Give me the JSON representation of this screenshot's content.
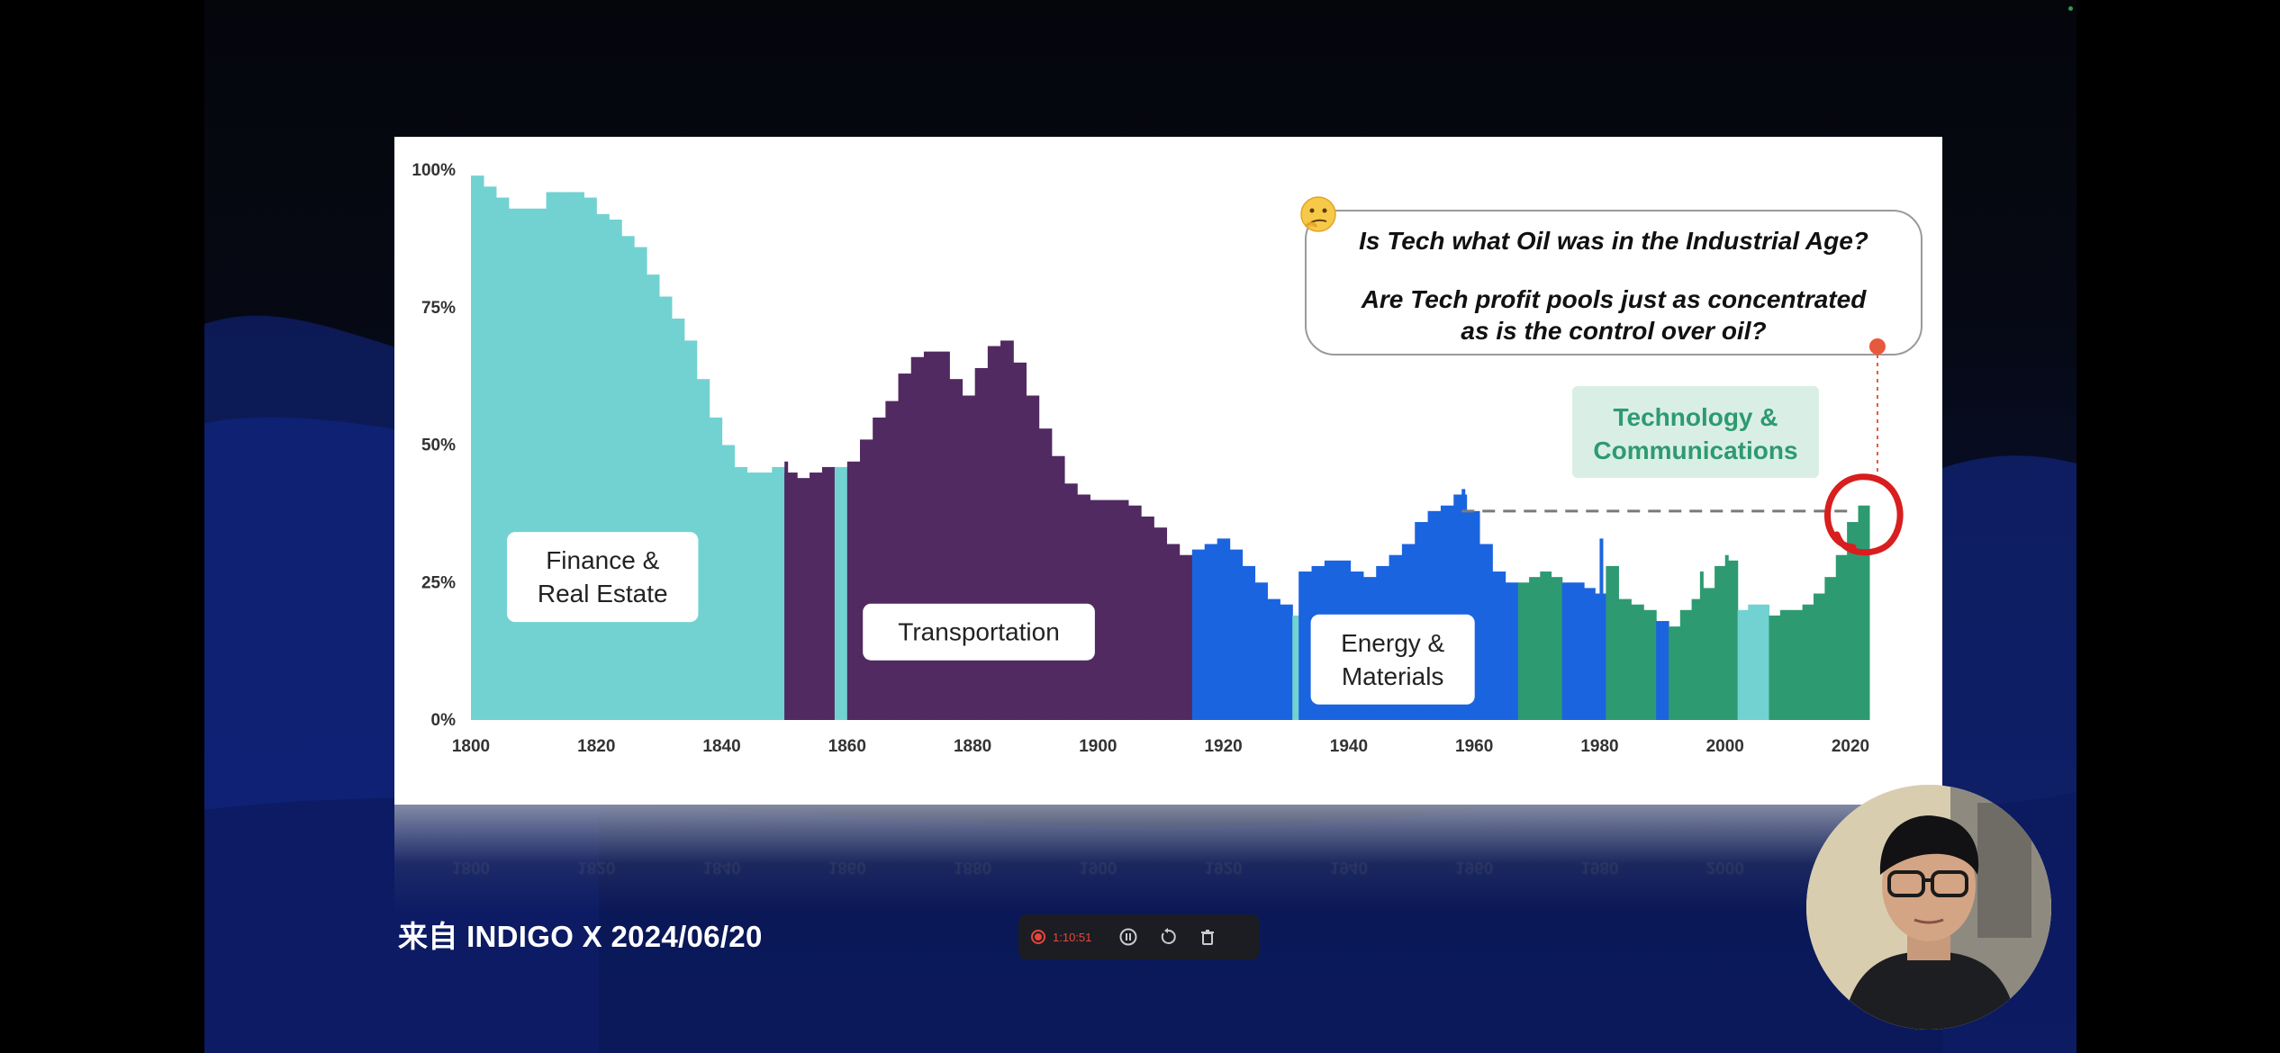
{
  "slide": {
    "chart_data": {
      "type": "bar",
      "x_start": 1800,
      "x_step": 2,
      "ylim": [
        0,
        100
      ],
      "y_ticks": [
        "0%",
        "25%",
        "50%",
        "75%",
        "100%"
      ],
      "x_ticks": [
        "1800",
        "1820",
        "1840",
        "1860",
        "1880",
        "1900",
        "1920",
        "1940",
        "1960",
        "1980",
        "2000",
        "2020"
      ],
      "sectors": [
        {
          "name": "Finance & Real Estate",
          "color": "#72d2d1"
        },
        {
          "name": "Transportation",
          "color": "#512a61"
        },
        {
          "name": "Energy & Materials",
          "color": "#1b64e0"
        },
        {
          "name": "Technology & Communications",
          "color": "#2e9a72"
        }
      ],
      "segments": [
        {
          "sector": 0,
          "start": 1800,
          "end": 1850,
          "values": [
            99,
            97,
            95,
            93,
            93,
            93,
            96,
            96,
            96,
            95,
            92,
            91,
            88,
            86,
            81,
            77,
            73,
            69,
            62,
            55,
            50,
            46,
            45,
            45,
            46
          ]
        },
        {
          "sector": 1,
          "start": 1850,
          "end": 1858,
          "values": [
            45,
            44,
            45,
            46
          ]
        },
        {
          "sector": 0,
          "start": 1858,
          "end": 1860,
          "values": [
            46
          ]
        },
        {
          "sector": 1,
          "start": 1860,
          "end": 1915,
          "values": [
            47,
            51,
            55,
            58,
            63,
            66,
            67,
            67,
            62,
            59,
            64,
            68,
            69,
            65,
            59,
            53,
            48,
            43,
            41,
            40,
            40,
            40,
            39,
            37,
            35,
            32,
            30
          ]
        },
        {
          "sector": 2,
          "start": 1915,
          "end": 1931,
          "values": [
            31,
            32,
            33,
            31,
            28,
            25,
            22,
            21
          ]
        },
        {
          "sector": 0,
          "start": 1931,
          "end": 1932,
          "values": [
            19
          ]
        },
        {
          "sector": 2,
          "start": 1932,
          "end": 1967,
          "values": [
            27,
            28,
            29,
            29,
            27,
            26,
            28,
            30,
            32,
            36,
            38,
            39,
            41,
            38,
            32,
            27,
            25
          ]
        },
        {
          "sector": 3,
          "start": 1967,
          "end": 1974,
          "values": [
            25,
            26,
            27,
            26
          ]
        },
        {
          "sector": 2,
          "start": 1974,
          "end": 1981,
          "values": [
            25,
            25,
            24,
            23
          ]
        },
        {
          "sector": 3,
          "start": 1981,
          "end": 1989,
          "values": [
            28,
            22,
            21,
            20
          ]
        },
        {
          "sector": 2,
          "start": 1989,
          "end": 1991,
          "values": [
            18
          ]
        },
        {
          "sector": 3,
          "start": 1991,
          "end": 2002,
          "values": [
            17,
            20,
            22,
            24,
            28,
            29
          ]
        },
        {
          "sector": 0,
          "start": 2002,
          "end": 2007,
          "values": [
            20,
            21,
            21
          ]
        },
        {
          "sector": 3,
          "start": 2007,
          "end": 2023,
          "values": [
            19,
            20,
            20,
            21,
            23,
            26,
            30,
            36,
            39
          ]
        }
      ],
      "spikes": [
        {
          "x": 1832,
          "value": 72,
          "sector": 0
        },
        {
          "x": 1850,
          "value": 47,
          "sector": 1
        },
        {
          "x": 1876,
          "value": 57,
          "sector": 1
        },
        {
          "x": 1958,
          "value": 42,
          "sector": 2
        },
        {
          "x": 1980,
          "value": 33,
          "sector": 2
        },
        {
          "x": 1996,
          "value": 27,
          "sector": 3
        },
        {
          "x": 2000,
          "value": 30,
          "sector": 3
        }
      ],
      "labels": [
        {
          "lines": [
            "Finance &",
            "Real Estate"
          ],
          "x": 1821,
          "value": 26
        },
        {
          "lines": [
            "Transportation"
          ],
          "x": 1881,
          "value": 16
        },
        {
          "lines": [
            "Energy &",
            "Materials"
          ],
          "x": 1947,
          "value": 11
        }
      ],
      "highlight": {
        "lines": [
          "Technology &",
          "Communications"
        ],
        "color": "#2e9a72",
        "bg": "#d9efe6"
      },
      "callout": {
        "emoji": "🤔",
        "question1": "Is Tech what Oil was in the Industrial Age?",
        "question2_lines": [
          "Are Tech profit pools just as concentrated",
          "as is the control over oil?"
        ]
      },
      "reference_line": {
        "from": 1958,
        "to": 2020,
        "value": 38
      },
      "annotation_circle": {
        "x": 2021,
        "value": 37
      }
    }
  },
  "caption": "来自 INDIGO X 2024/06/20",
  "recorder": {
    "time": "1:10:51",
    "pause_icon": "pause-icon",
    "restart_icon": "restart-icon",
    "delete_icon": "trash-icon"
  }
}
